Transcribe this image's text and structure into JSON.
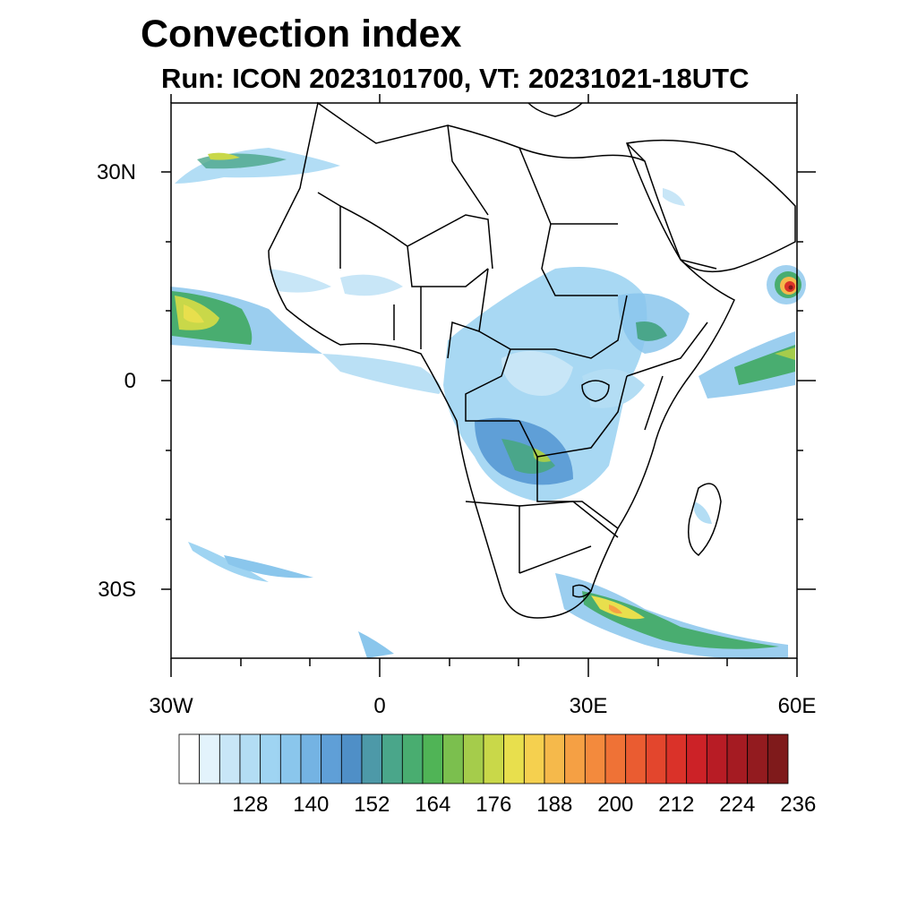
{
  "title": "Convection index",
  "subtitle": "Run: ICON 2023101700,  VT: 20231021-18UTC",
  "map": {
    "projection": "cylindrical equidistant",
    "lon_range": [
      -30,
      60
    ],
    "lat_range": [
      -40,
      40
    ],
    "lat_ticks": [
      {
        "value": 30,
        "label": "30N"
      },
      {
        "value": 0,
        "label": "0"
      },
      {
        "value": -30,
        "label": "30S"
      }
    ],
    "lon_ticks": [
      {
        "value": -30,
        "label": "30W"
      },
      {
        "value": 0,
        "label": "0"
      },
      {
        "value": 30,
        "label": "30E"
      },
      {
        "value": 60,
        "label": "60E"
      }
    ],
    "region": "Africa"
  },
  "colorbar": {
    "levels": [
      120,
      124,
      128,
      132,
      136,
      140,
      144,
      148,
      152,
      156,
      160,
      164,
      168,
      172,
      176,
      180,
      184,
      188,
      192,
      196,
      200,
      204,
      208,
      212,
      216,
      220,
      224,
      228,
      232,
      236
    ],
    "colors": [
      "#ffffff",
      "#e3f3fc",
      "#c8e6f7",
      "#b3ddf4",
      "#9fd4f2",
      "#8ac6ec",
      "#74b3e3",
      "#5f9fd7",
      "#4f8fc7",
      "#4d99a8",
      "#4aa68a",
      "#49ad70",
      "#50b456",
      "#7bbf4e",
      "#a5cc4b",
      "#c9d849",
      "#e8df4d",
      "#f5d04f",
      "#f5b94b",
      "#f5a044",
      "#f38a3d",
      "#ef7236",
      "#ea5c31",
      "#e3462d",
      "#da3229",
      "#cc2227",
      "#b81c25",
      "#a51b22",
      "#931b1f",
      "#7f1a1b"
    ],
    "tick_labels": [
      "128",
      "140",
      "152",
      "164",
      "176",
      "188",
      "200",
      "212",
      "224",
      "236"
    ]
  }
}
